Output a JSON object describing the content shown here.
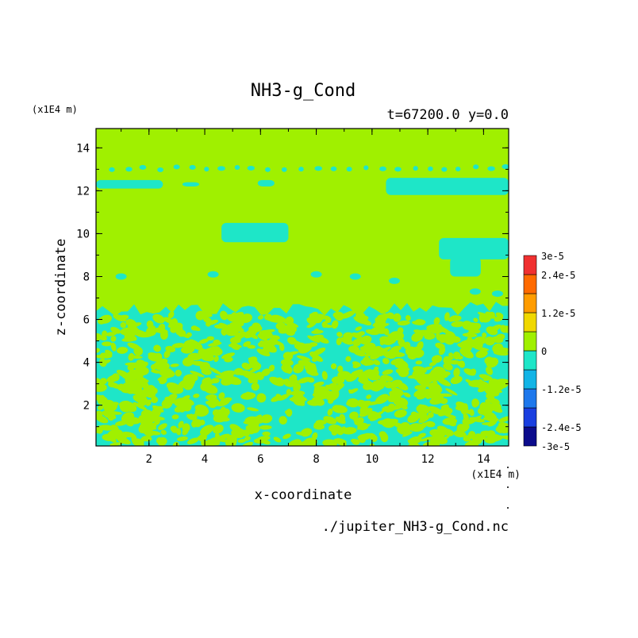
{
  "chart_data": {
    "type": "heatmap",
    "title": "NH3-g_Cond",
    "subtitle": "t=67200.0 y=0.0",
    "xlabel": "x-coordinate",
    "ylabel": "z-coordinate",
    "x_unit": "(x1E4 m)",
    "y_unit": "(x1E4 m)",
    "footer": "./jupiter_NH3-g_Cond.nc",
    "xlim": [
      0.1,
      14.9
    ],
    "ylim": [
      0.1,
      14.9
    ],
    "x_ticks": [
      "2",
      "4",
      "6",
      "8",
      "10",
      "12",
      "14"
    ],
    "y_ticks": [
      "2",
      "4",
      "6",
      "8",
      "10",
      "12",
      "14"
    ],
    "grid": false,
    "colorbar": {
      "position": "right",
      "levels": [
        {
          "from": -3e-05,
          "to": -2.4e-05,
          "color": "#0c0c8c"
        },
        {
          "from": -2.4e-05,
          "to": -1.8e-05,
          "color": "#1a3fe0"
        },
        {
          "from": -1.8e-05,
          "to": -1.2e-05,
          "color": "#1e78ec"
        },
        {
          "from": -1.2e-05,
          "to": -6e-06,
          "color": "#12b4e6"
        },
        {
          "from": -6e-06,
          "to": 0,
          "color": "#1ee6c8"
        },
        {
          "from": 0,
          "to": 6e-06,
          "color": "#a0f000"
        },
        {
          "from": 6e-06,
          "to": 1.2e-05,
          "color": "#f0d800"
        },
        {
          "from": 1.2e-05,
          "to": 1.8e-05,
          "color": "#ff9c00"
        },
        {
          "from": 1.8e-05,
          "to": 2.4e-05,
          "color": "#ff6a00"
        },
        {
          "from": 2.4e-05,
          "to": 3e-05,
          "color": "#f03030"
        }
      ],
      "labels": [
        "3e-5",
        "2.4e-5",
        "1.2e-5",
        "0",
        "-1.2e-5",
        "-2.4e-5",
        "-3e-5"
      ]
    },
    "field": {
      "background_color": "#a0f000",
      "patch_color": "#1ee6c8",
      "upper_patches": [
        {
          "x0": 0.1,
          "x1": 2.5,
          "z0": 12.1,
          "z1": 12.5
        },
        {
          "x0": 3.2,
          "x1": 3.8,
          "z0": 12.2,
          "z1": 12.4
        },
        {
          "x0": 5.9,
          "x1": 6.5,
          "z0": 12.2,
          "z1": 12.5
        },
        {
          "x0": 10.5,
          "x1": 14.9,
          "z0": 11.8,
          "z1": 12.6
        },
        {
          "x0": 4.6,
          "x1": 7.0,
          "z0": 9.6,
          "z1": 10.5
        },
        {
          "x0": 12.4,
          "x1": 14.9,
          "z0": 8.8,
          "z1": 9.8
        },
        {
          "x0": 12.8,
          "x1": 13.9,
          "z0": 8.0,
          "z1": 8.9
        }
      ],
      "lower_region_top_z": 6.6
    }
  }
}
